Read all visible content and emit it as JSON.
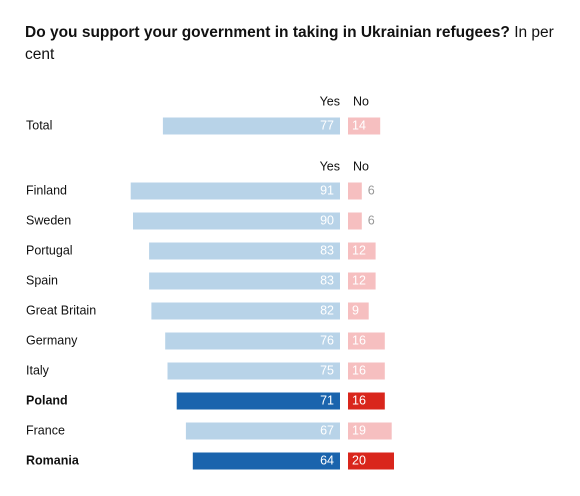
{
  "chart_data": [
    {
      "type": "diverging-bar",
      "title": "Do you support your government in taking in Ukrainian refugees?",
      "subtitle": "In per cent",
      "categories": [
        "Total"
      ],
      "series": [
        {
          "name": "Yes",
          "color": "#b8d3e8",
          "highlight_color": "#1a64ad",
          "values": [
            77
          ]
        },
        {
          "name": "No",
          "color": "#f6bfc0",
          "highlight_color": "#d9261c",
          "values": [
            14
          ]
        }
      ],
      "highlight": []
    },
    {
      "type": "diverging-bar",
      "categories": [
        "Finland",
        "Sweden",
        "Portugal",
        "Spain",
        "Great Britain",
        "Germany",
        "Italy",
        "Poland",
        "France",
        "Romania"
      ],
      "series": [
        {
          "name": "Yes",
          "color": "#b8d3e8",
          "highlight_color": "#1a64ad",
          "values": [
            91,
            90,
            83,
            83,
            82,
            76,
            75,
            71,
            67,
            64
          ]
        },
        {
          "name": "No",
          "color": "#f6bfc0",
          "highlight_color": "#d9261c",
          "values": [
            6,
            6,
            12,
            12,
            9,
            16,
            16,
            16,
            19,
            20
          ]
        }
      ],
      "highlight": [
        7,
        9
      ]
    }
  ]
}
